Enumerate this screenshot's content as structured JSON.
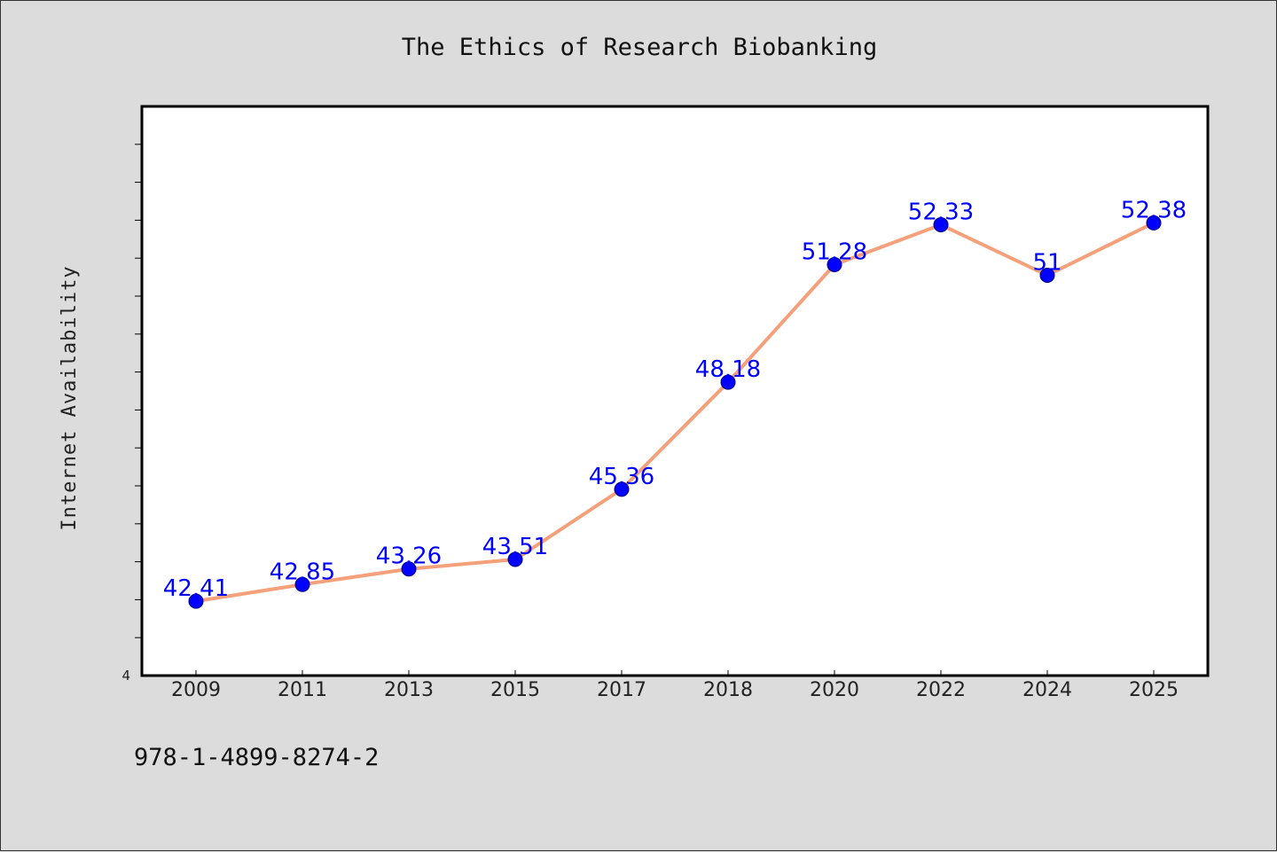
{
  "chart_data": {
    "type": "line",
    "title": "The Ethics of Research Biobanking",
    "xlabel": "",
    "ylabel": "Internet Availability",
    "categories": [
      "2009",
      "2011",
      "2013",
      "2015",
      "2017",
      "2018",
      "2020",
      "2022",
      "2024",
      "2025"
    ],
    "series": [
      {
        "values": [
          42.41,
          42.85,
          43.26,
          43.51,
          45.36,
          48.18,
          51.28,
          52.33,
          51,
          52.38
        ],
        "labels": [
          "42.41",
          "42.85",
          "43.26",
          "43.51",
          "45.36",
          "48.18",
          "51.28",
          "52.33",
          "51",
          "52.38"
        ]
      }
    ],
    "ylim": [
      40.45,
      55.45
    ],
    "y_tick_labels": [
      "4"
    ],
    "grid": false,
    "line_color": "#f4a07a",
    "marker_color": "#0000ff",
    "label_color": "#0000ff",
    "plot_background": "#ffffff"
  },
  "footnote": "978-1-4899-8274-2"
}
